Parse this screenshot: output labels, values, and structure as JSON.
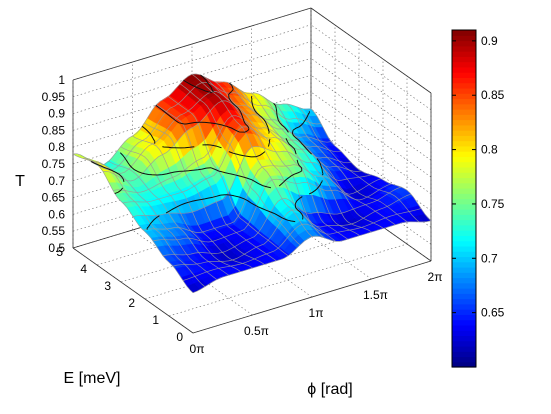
{
  "chart_data": {
    "type": "surface",
    "xlabel": "ϕ [rad]",
    "ylabel": "E [meV]",
    "zlabel": "T",
    "x_ticks": [
      "0π",
      "0.5π",
      "1π",
      "1.5π",
      "2π"
    ],
    "x_range": [
      0,
      6.2832
    ],
    "y_ticks": [
      "0",
      "1",
      "2",
      "3",
      "4",
      "5"
    ],
    "y_range": [
      0,
      5
    ],
    "z_ticks": [
      "0.5",
      "0.55",
      "0.6",
      "0.65",
      "0.7",
      "0.75",
      "0.8",
      "0.85",
      "0.9",
      "0.95",
      "1"
    ],
    "z_range": [
      0.5,
      1.0
    ],
    "colormap": "jet",
    "colorbar_ticks": [
      "0.65",
      "0.7",
      "0.75",
      "0.8",
      "0.85",
      "0.9"
    ],
    "color_range": [
      0.6,
      0.91
    ],
    "grid": true,
    "contour_levels": [
      0.7,
      0.75,
      0.8,
      0.85,
      0.9
    ],
    "surface_samples_phi_over_pi": [
      0,
      0.25,
      0.5,
      0.75,
      1.0,
      1.25,
      1.5,
      1.75,
      2.0
    ],
    "surface_samples_E": [
      0,
      1,
      2,
      3,
      4,
      5
    ],
    "surface_T": [
      [
        0.62,
        0.64,
        0.64,
        0.64,
        0.68,
        0.64,
        0.64,
        0.64,
        0.62
      ],
      [
        0.66,
        0.64,
        0.62,
        0.64,
        0.72,
        0.64,
        0.62,
        0.64,
        0.66
      ],
      [
        0.7,
        0.68,
        0.64,
        0.64,
        0.78,
        0.76,
        0.7,
        0.62,
        0.64
      ],
      [
        0.74,
        0.72,
        0.72,
        0.74,
        0.86,
        0.8,
        0.74,
        0.66,
        0.62
      ],
      [
        0.8,
        0.74,
        0.8,
        0.86,
        0.9,
        0.83,
        0.76,
        0.68,
        0.64
      ],
      [
        0.78,
        0.72,
        0.78,
        0.86,
        0.91,
        0.86,
        0.8,
        0.74,
        0.7
      ]
    ]
  }
}
